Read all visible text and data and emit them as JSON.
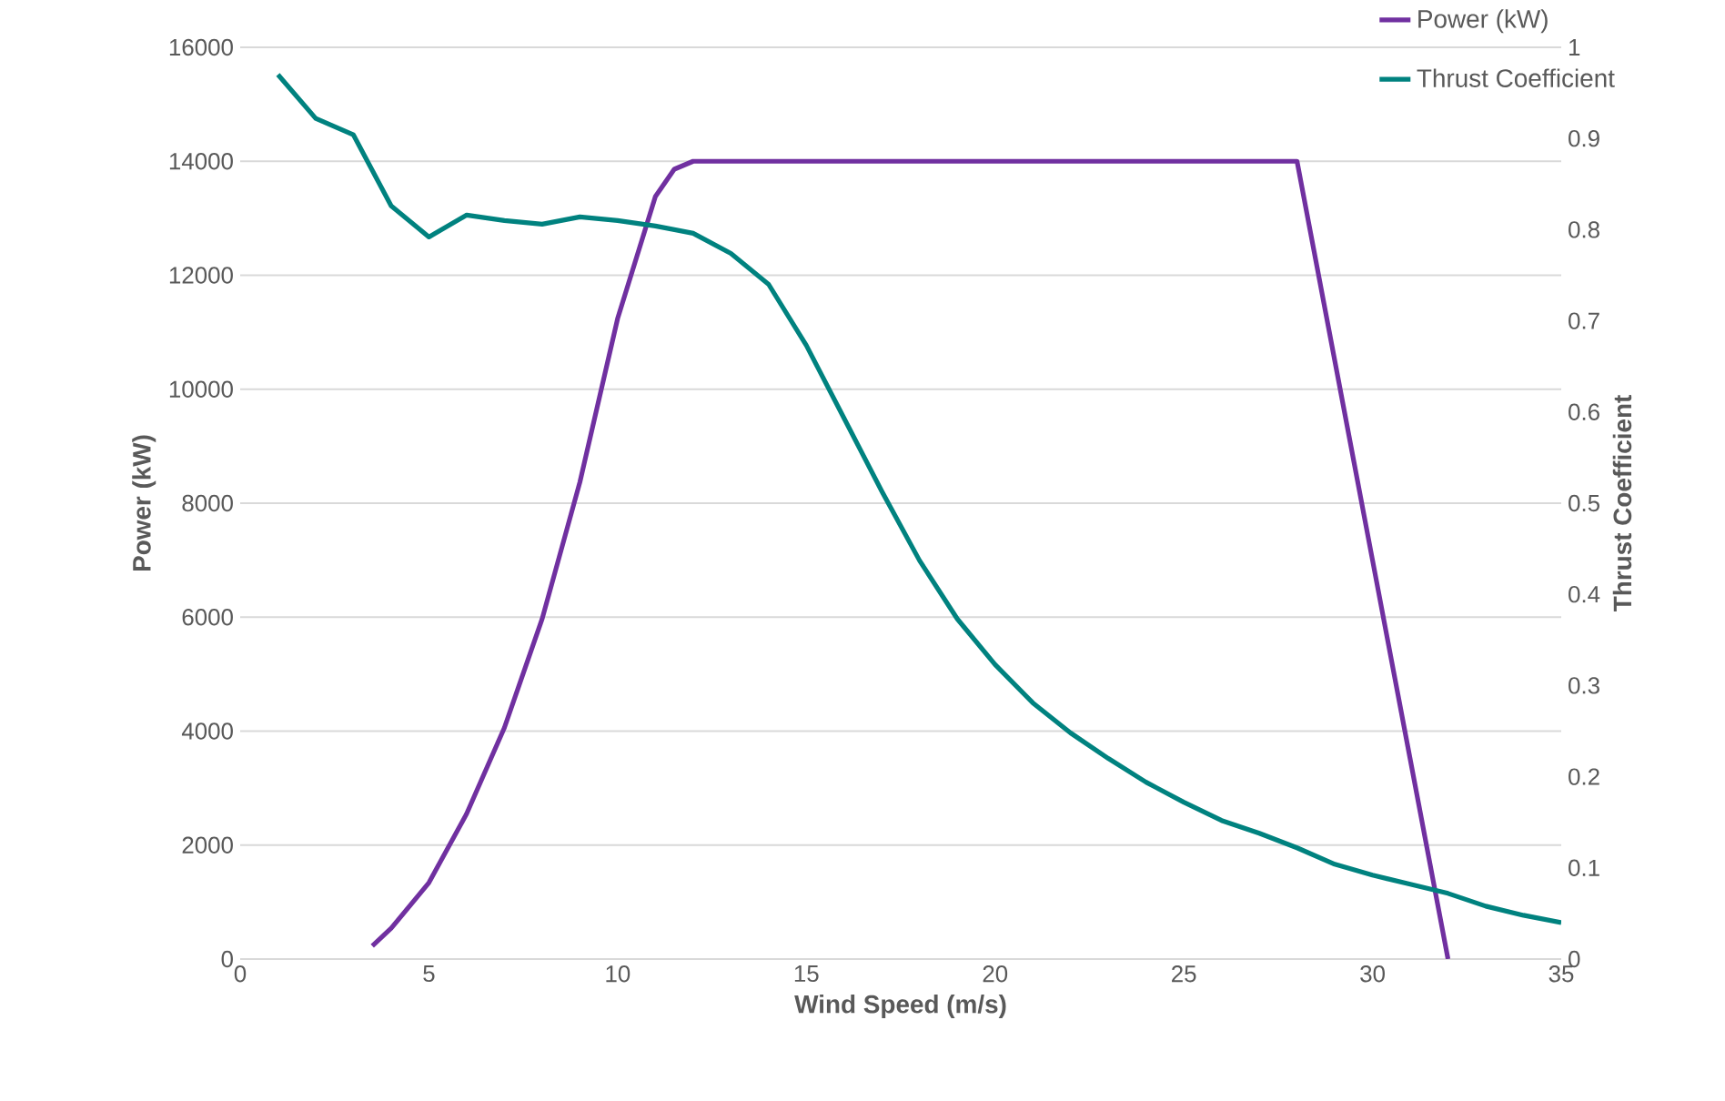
{
  "chart_data": {
    "type": "line",
    "xlabel": "Wind Speed (m/s)",
    "ylabel": "Power (kW)",
    "y2label": "Thrust Coefficient",
    "xlim": [
      0,
      35
    ],
    "xticks": [
      0,
      5,
      10,
      15,
      20,
      25,
      30,
      35
    ],
    "ylim": [
      0,
      16000
    ],
    "yticks": [
      0,
      2000,
      4000,
      6000,
      8000,
      10000,
      12000,
      14000,
      16000
    ],
    "y2lim": [
      0,
      1
    ],
    "y2ticks": [
      0,
      0.1,
      0.2,
      0.3,
      0.4,
      0.5,
      0.6,
      0.7,
      0.8,
      0.9,
      1
    ],
    "grid": "y",
    "legend": "top right",
    "marker": "none",
    "line_style": "solid",
    "series": [
      {
        "name": "Power (kW)",
        "color": "#7030a0",
        "x": [
          3.5,
          4,
          5,
          6,
          7,
          8,
          9,
          10,
          11,
          11.5,
          12,
          28,
          29,
          30,
          31,
          32
        ],
        "values": [
          230,
          540,
          1340,
          2550,
          4060,
          5970,
          8370,
          11240,
          13380,
          13860,
          14000,
          14000,
          10500,
          7000,
          3500,
          0
        ]
      },
      {
        "name": "Thrust Coefficient",
        "color": "#00827f",
        "axis": "y2",
        "x": [
          1,
          2,
          3,
          4,
          5,
          6,
          7,
          8,
          9,
          10,
          11,
          12,
          13,
          14,
          15,
          16,
          17,
          18,
          19,
          20,
          21,
          22,
          23,
          24,
          25,
          26,
          27,
          28,
          29,
          30,
          31,
          32,
          33,
          34,
          35
        ],
        "values": [
          0.97,
          0.922,
          0.904,
          0.826,
          0.792,
          0.816,
          0.81,
          0.806,
          0.814,
          0.81,
          0.804,
          0.796,
          0.774,
          0.74,
          0.673,
          0.593,
          0.513,
          0.437,
          0.373,
          0.323,
          0.281,
          0.248,
          0.22,
          0.194,
          0.172,
          0.152,
          0.138,
          0.122,
          0.104,
          0.092,
          0.082,
          0.072,
          0.058,
          0.048,
          0.04
        ]
      }
    ]
  }
}
